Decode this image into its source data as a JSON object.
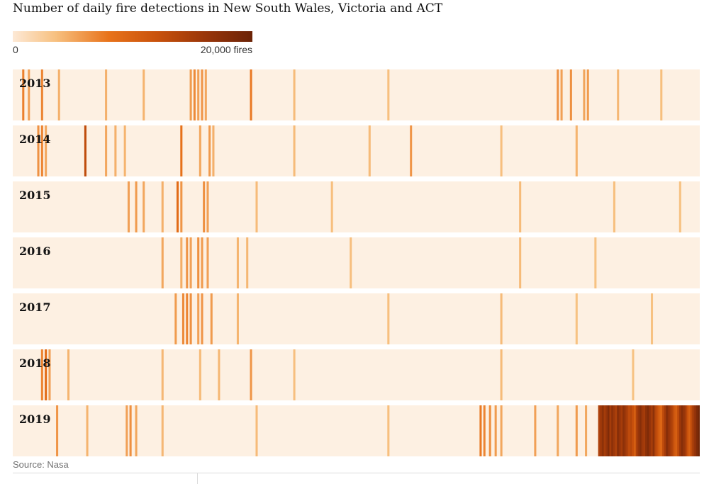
{
  "title": "Number of daily fire detections in New South Wales, Victoria and ACT",
  "source": "Source: Nasa",
  "legend": {
    "min_label": "0",
    "max_label": "20,000 fires"
  },
  "colors": {
    "background": "#fdf0e2",
    "scale": [
      "#fde9d6",
      "#f7c07f",
      "#e8731b",
      "#c9520c",
      "#9a360a",
      "#6b2307"
    ]
  },
  "chart_data": {
    "type": "heatmap",
    "title": "Number of daily fire detections in New South Wales, Victoria and ACT",
    "x": "day of year (1–365)",
    "value_range": [
      0,
      20000
    ],
    "default_value": 300,
    "rows": [
      {
        "year": "2013",
        "peaks": [
          {
            "day": 6,
            "value": 3200
          },
          {
            "day": 9,
            "value": 2000
          },
          {
            "day": 16,
            "value": 3000
          },
          {
            "day": 25,
            "value": 1500
          },
          {
            "day": 50,
            "value": 1500
          },
          {
            "day": 70,
            "value": 1400
          },
          {
            "day": 95,
            "value": 2200
          },
          {
            "day": 97,
            "value": 2800
          },
          {
            "day": 99,
            "value": 2000
          },
          {
            "day": 101,
            "value": 2400
          },
          {
            "day": 103,
            "value": 1800
          },
          {
            "day": 127,
            "value": 3500
          },
          {
            "day": 150,
            "value": 1200
          },
          {
            "day": 200,
            "value": 1100
          },
          {
            "day": 290,
            "value": 2500
          },
          {
            "day": 292,
            "value": 2000
          },
          {
            "day": 297,
            "value": 2600
          },
          {
            "day": 304,
            "value": 1900
          },
          {
            "day": 306,
            "value": 2200
          },
          {
            "day": 322,
            "value": 1300
          },
          {
            "day": 345,
            "value": 1100
          }
        ]
      },
      {
        "year": "2014",
        "peaks": [
          {
            "day": 14,
            "value": 2500
          },
          {
            "day": 16,
            "value": 3000
          },
          {
            "day": 18,
            "value": 1800
          },
          {
            "day": 39,
            "value": 9000
          },
          {
            "day": 50,
            "value": 1800
          },
          {
            "day": 55,
            "value": 1500
          },
          {
            "day": 60,
            "value": 1400
          },
          {
            "day": 90,
            "value": 4000
          },
          {
            "day": 100,
            "value": 1800
          },
          {
            "day": 105,
            "value": 2200
          },
          {
            "day": 107,
            "value": 1500
          },
          {
            "day": 150,
            "value": 1200
          },
          {
            "day": 190,
            "value": 1200
          },
          {
            "day": 212,
            "value": 2400
          },
          {
            "day": 260,
            "value": 1100
          },
          {
            "day": 300,
            "value": 1400
          }
        ]
      },
      {
        "year": "2015",
        "peaks": [
          {
            "day": 62,
            "value": 2000
          },
          {
            "day": 66,
            "value": 2200
          },
          {
            "day": 70,
            "value": 1800
          },
          {
            "day": 80,
            "value": 1500
          },
          {
            "day": 88,
            "value": 4500
          },
          {
            "day": 90,
            "value": 2400
          },
          {
            "day": 102,
            "value": 2600
          },
          {
            "day": 104,
            "value": 2000
          },
          {
            "day": 130,
            "value": 1200
          },
          {
            "day": 170,
            "value": 1100
          },
          {
            "day": 270,
            "value": 1200
          },
          {
            "day": 320,
            "value": 1100
          },
          {
            "day": 355,
            "value": 1000
          }
        ]
      },
      {
        "year": "2016",
        "peaks": [
          {
            "day": 80,
            "value": 1800
          },
          {
            "day": 90,
            "value": 1600
          },
          {
            "day": 93,
            "value": 2400
          },
          {
            "day": 95,
            "value": 2000
          },
          {
            "day": 99,
            "value": 2600
          },
          {
            "day": 101,
            "value": 2200
          },
          {
            "day": 104,
            "value": 2000
          },
          {
            "day": 120,
            "value": 1400
          },
          {
            "day": 125,
            "value": 1300
          },
          {
            "day": 180,
            "value": 1100
          },
          {
            "day": 270,
            "value": 1200
          },
          {
            "day": 310,
            "value": 1000
          }
        ]
      },
      {
        "year": "2017",
        "peaks": [
          {
            "day": 87,
            "value": 2200
          },
          {
            "day": 91,
            "value": 2800
          },
          {
            "day": 93,
            "value": 3000
          },
          {
            "day": 95,
            "value": 2600
          },
          {
            "day": 99,
            "value": 2000
          },
          {
            "day": 101,
            "value": 2400
          },
          {
            "day": 106,
            "value": 2200
          },
          {
            "day": 120,
            "value": 1400
          },
          {
            "day": 200,
            "value": 1100
          },
          {
            "day": 260,
            "value": 1200
          },
          {
            "day": 300,
            "value": 1000
          },
          {
            "day": 340,
            "value": 1000
          }
        ]
      },
      {
        "year": "2018",
        "peaks": [
          {
            "day": 16,
            "value": 3000
          },
          {
            "day": 18,
            "value": 4500
          },
          {
            "day": 20,
            "value": 2000
          },
          {
            "day": 30,
            "value": 1400
          },
          {
            "day": 80,
            "value": 1300
          },
          {
            "day": 100,
            "value": 1200
          },
          {
            "day": 110,
            "value": 1300
          },
          {
            "day": 127,
            "value": 2400
          },
          {
            "day": 150,
            "value": 1100
          },
          {
            "day": 260,
            "value": 1200
          },
          {
            "day": 330,
            "value": 1000
          }
        ]
      },
      {
        "year": "2019",
        "peaks": [
          {
            "day": 24,
            "value": 2400
          },
          {
            "day": 40,
            "value": 1400
          },
          {
            "day": 61,
            "value": 2000
          },
          {
            "day": 63,
            "value": 2600
          },
          {
            "day": 66,
            "value": 1800
          },
          {
            "day": 80,
            "value": 1300
          },
          {
            "day": 130,
            "value": 1200
          },
          {
            "day": 200,
            "value": 1100
          },
          {
            "day": 249,
            "value": 3500
          },
          {
            "day": 251,
            "value": 3000
          },
          {
            "day": 254,
            "value": 2600
          },
          {
            "day": 257,
            "value": 2200
          },
          {
            "day": 260,
            "value": 1800
          },
          {
            "day": 278,
            "value": 2000
          },
          {
            "day": 290,
            "value": 1800
          },
          {
            "day": 300,
            "value": 2200
          },
          {
            "day": 305,
            "value": 1800
          },
          {
            "day": 312,
            "value": 11000
          },
          {
            "day": 313,
            "value": 13000
          },
          {
            "day": 314,
            "value": 15000
          },
          {
            "day": 315,
            "value": 12000
          },
          {
            "day": 316,
            "value": 14000
          },
          {
            "day": 317,
            "value": 17000
          },
          {
            "day": 318,
            "value": 12000
          },
          {
            "day": 319,
            "value": 15000
          },
          {
            "day": 320,
            "value": 13000
          },
          {
            "day": 321,
            "value": 11000
          },
          {
            "day": 322,
            "value": 16000
          },
          {
            "day": 323,
            "value": 14000
          },
          {
            "day": 324,
            "value": 12000
          },
          {
            "day": 325,
            "value": 15000
          },
          {
            "day": 326,
            "value": 13000
          },
          {
            "day": 327,
            "value": 11000
          },
          {
            "day": 328,
            "value": 9000
          },
          {
            "day": 329,
            "value": 10000
          },
          {
            "day": 330,
            "value": 8000
          },
          {
            "day": 331,
            "value": 6000
          },
          {
            "day": 332,
            "value": 11000
          },
          {
            "day": 333,
            "value": 14000
          },
          {
            "day": 334,
            "value": 16000
          },
          {
            "day": 335,
            "value": 13000
          },
          {
            "day": 336,
            "value": 12000
          },
          {
            "day": 337,
            "value": 15000
          },
          {
            "day": 338,
            "value": 17000
          },
          {
            "day": 339,
            "value": 14000
          },
          {
            "day": 340,
            "value": 12000
          },
          {
            "day": 341,
            "value": 15000
          },
          {
            "day": 342,
            "value": 10000
          },
          {
            "day": 343,
            "value": 8000
          },
          {
            "day": 344,
            "value": 6000
          },
          {
            "day": 345,
            "value": 5000
          },
          {
            "day": 346,
            "value": 9000
          },
          {
            "day": 347,
            "value": 12000
          },
          {
            "day": 348,
            "value": 16000
          },
          {
            "day": 349,
            "value": 14000
          },
          {
            "day": 350,
            "value": 12000
          },
          {
            "day": 351,
            "value": 10000
          },
          {
            "day": 352,
            "value": 7000
          },
          {
            "day": 353,
            "value": 6000
          },
          {
            "day": 354,
            "value": 9000
          },
          {
            "day": 355,
            "value": 13000
          },
          {
            "day": 356,
            "value": 16000
          },
          {
            "day": 357,
            "value": 14000
          },
          {
            "day": 358,
            "value": 12000
          },
          {
            "day": 359,
            "value": 8000
          },
          {
            "day": 360,
            "value": 6000
          },
          {
            "day": 361,
            "value": 9000
          },
          {
            "day": 362,
            "value": 12000
          },
          {
            "day": 363,
            "value": 14000
          },
          {
            "day": 364,
            "value": 17000
          },
          {
            "day": 365,
            "value": 19000
          }
        ]
      }
    ]
  }
}
